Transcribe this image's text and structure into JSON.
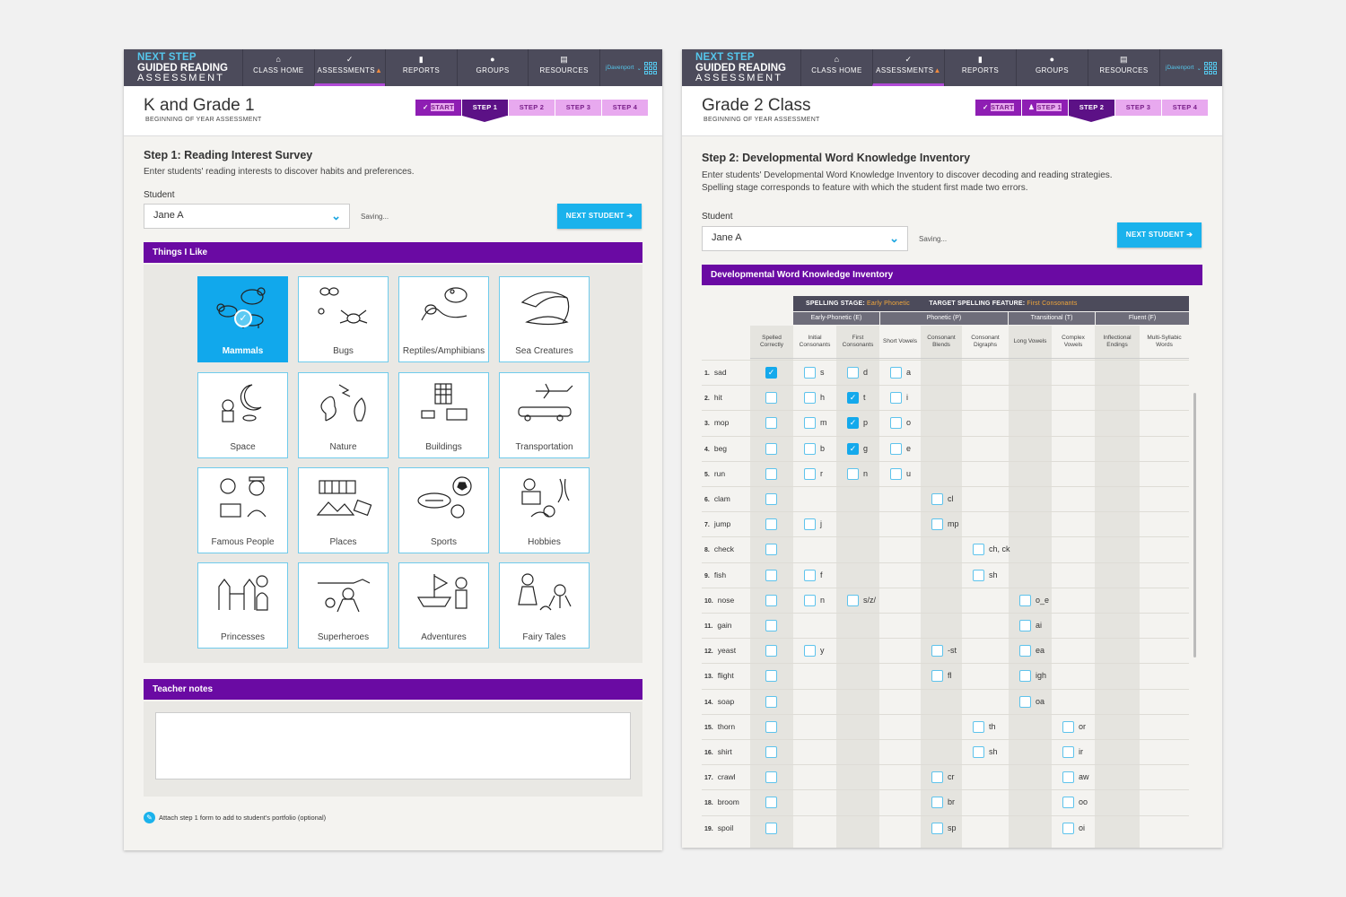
{
  "nav": {
    "logo_line1": "NEXT STEP",
    "logo_line2": "GUIDED READING",
    "logo_line3": "ASSESSMENT",
    "items": [
      {
        "label": "CLASS HOME",
        "icon": "home-icon"
      },
      {
        "label": "ASSESSMENTS",
        "icon": "check-icon"
      },
      {
        "label": "REPORTS",
        "icon": "bar-chart-icon"
      },
      {
        "label": "GROUPS",
        "icon": "group-icon"
      },
      {
        "label": "RESOURCES",
        "icon": "document-icon"
      }
    ],
    "user": "jDavenport",
    "colors": {
      "nav_bg": "#4c4b5b",
      "accent_blue": "#55c7ec",
      "accent_purple": "#6a0aa3"
    }
  },
  "left": {
    "title": "K and Grade 1",
    "subtitle": "BEGINNING OF YEAR ASSESSMENT",
    "steps": [
      "START",
      "STEP 1",
      "STEP 2",
      "STEP 3",
      "STEP 4"
    ],
    "step_title": "Step 1: Reading Interest Survey",
    "step_desc": "Enter students' reading interests to discover habits and preferences.",
    "student_label": "Student",
    "student_value": "Jane A",
    "saving": "Saving...",
    "next_student": "NEXT STUDENT ➔",
    "things_header": "Things I Like",
    "interests": [
      "Mammals",
      "Bugs",
      "Reptiles/Amphibians",
      "Sea Creatures",
      "Space",
      "Nature",
      "Buildings",
      "Transportation",
      "Famous People",
      "Places",
      "Sports",
      "Hobbies",
      "Princesses",
      "Superheroes",
      "Adventures",
      "Fairy Tales"
    ],
    "selected_interest": "Mammals",
    "notes_header": "Teacher notes",
    "attach": "Attach step 1 form to add to student's portfolio (optional)"
  },
  "right": {
    "title": "Grade 2 Class",
    "subtitle": "BEGINNING OF YEAR ASSESSMENT",
    "steps": [
      "START",
      "STEP 1",
      "STEP 2",
      "STEP 3",
      "STEP 4"
    ],
    "step_title": "Step 2: Developmental Word Knowledge Inventory",
    "step_desc1": "Enter students' Developmental Word Knowledge Inventory to discover decoding and reading strategies.",
    "step_desc2": "Spelling stage corresponds to feature with which the student first made two errors.",
    "student_label": "Student",
    "student_value": "Jane A",
    "saving": "Saving...",
    "next_student": "NEXT STUDENT ➔",
    "dwki_header": "Developmental Word Knowledge Inventory",
    "spelling_stage_label": "SPELLING STAGE:",
    "spelling_stage_value": "Early Phonetic",
    "target_label": "TARGET SPELLING FEATURE:",
    "target_value": "First Consonants",
    "groups": [
      "Early-Phonetic (E)",
      "Phonetic (P)",
      "Transitional (T)",
      "Fluent (F)"
    ],
    "columns": [
      "Spelled Correctly",
      "Initial Consonants",
      "First Consonants",
      "Short Vowels",
      "Consonant Blends",
      "Consonant Digraphs",
      "Long Vowels",
      "Complex Vowels",
      "Inflectional Endings",
      "Multi-Syllabic Words"
    ],
    "words": [
      {
        "n": "1.",
        "w": "sad"
      },
      {
        "n": "2.",
        "w": "hit"
      },
      {
        "n": "3.",
        "w": "mop"
      },
      {
        "n": "4.",
        "w": "beg"
      },
      {
        "n": "5.",
        "w": "run"
      },
      {
        "n": "6.",
        "w": "clam"
      },
      {
        "n": "7.",
        "w": "jump"
      },
      {
        "n": "8.",
        "w": "check"
      },
      {
        "n": "9.",
        "w": "fish"
      },
      {
        "n": "10.",
        "w": "nose"
      },
      {
        "n": "11.",
        "w": "gain"
      },
      {
        "n": "12.",
        "w": "yeast"
      },
      {
        "n": "13.",
        "w": "flight"
      },
      {
        "n": "14.",
        "w": "soap"
      },
      {
        "n": "15.",
        "w": "thorn"
      },
      {
        "n": "16.",
        "w": "shirt"
      },
      {
        "n": "17.",
        "w": "crawl"
      },
      {
        "n": "18.",
        "w": "broom"
      },
      {
        "n": "19.",
        "w": "spoil"
      }
    ],
    "features": {
      "initial": [
        "s",
        "h",
        "m",
        "b",
        "r",
        "",
        "j",
        "",
        "f",
        "n",
        "",
        "y"
      ],
      "first": [
        "d",
        "t",
        "p",
        "g",
        "n",
        "",
        "",
        "",
        "",
        "s/z/"
      ],
      "short": [
        "a",
        "i",
        "o",
        "e",
        "u"
      ],
      "blends": [
        "",
        "",
        "",
        "",
        "",
        "cl",
        "mp",
        "",
        "",
        "",
        "",
        "-st",
        "fl",
        "",
        "",
        "",
        "cr",
        "br",
        "sp"
      ],
      "digraphs": [
        "",
        "",
        "",
        "",
        "",
        "",
        "",
        "ch, ck",
        "sh",
        "",
        "",
        "",
        "",
        "",
        "th",
        "sh"
      ],
      "long": [
        "",
        "",
        "",
        "",
        "",
        "",
        "",
        "",
        "",
        "o_e",
        "ai",
        "ea",
        "igh",
        "oa"
      ],
      "complex": [
        "",
        "",
        "",
        "",
        "",
        "",
        "",
        "",
        "",
        "",
        "",
        "",
        "",
        "",
        "or",
        "ir",
        "aw",
        "oo",
        "oi"
      ]
    }
  }
}
